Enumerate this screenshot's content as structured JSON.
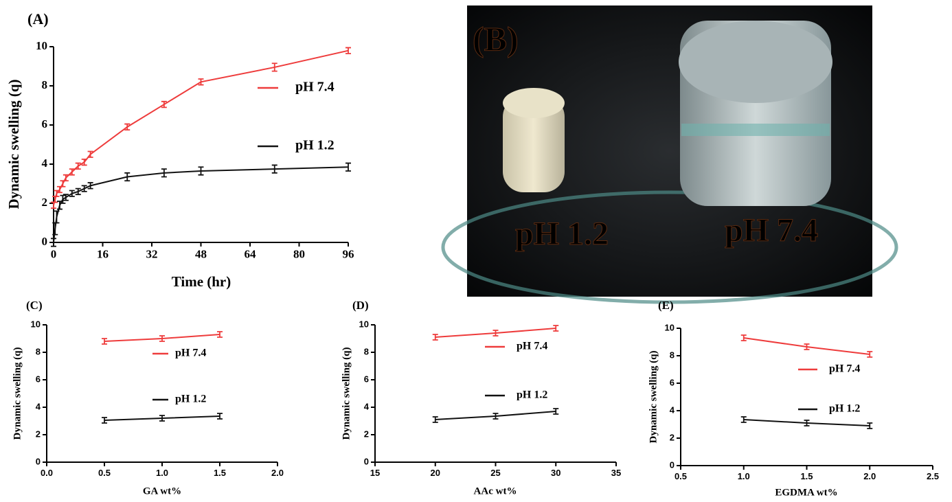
{
  "chart_data": [
    {
      "type": "line",
      "panel_label": "(A)",
      "x_label": "Time (hr)",
      "y_label": "Dynamic swelling (q)",
      "x": [
        0,
        0.5,
        1,
        2,
        3,
        4,
        6,
        8,
        10,
        12,
        24,
        36,
        48,
        72,
        96
      ],
      "series": [
        {
          "name": "pH 7.4",
          "color": "#ee3b3b",
          "values": [
            1.9,
            2.2,
            2.5,
            2.7,
            3.0,
            3.3,
            3.6,
            3.9,
            4.1,
            4.5,
            5.9,
            7.05,
            8.2,
            8.95,
            9.8
          ],
          "errors": [
            0.15,
            0.15,
            0.15,
            0.15,
            0.15,
            0.15,
            0.15,
            0.15,
            0.15,
            0.15,
            0.15,
            0.15,
            0.15,
            0.2,
            0.15
          ]
        },
        {
          "name": "pH 1.2",
          "color": "#111111",
          "values": [
            0,
            0.7,
            1.3,
            1.9,
            2.2,
            2.3,
            2.5,
            2.6,
            2.75,
            2.9,
            3.35,
            3.55,
            3.65,
            3.75,
            3.85
          ],
          "errors": [
            0.2,
            0.3,
            0.3,
            0.2,
            0.2,
            0.15,
            0.15,
            0.15,
            0.15,
            0.15,
            0.2,
            0.2,
            0.2,
            0.2,
            0.2
          ]
        }
      ],
      "xlim": [
        0,
        96
      ],
      "ylim": [
        0,
        10
      ],
      "xticks": [
        0,
        16,
        32,
        48,
        64,
        80,
        96
      ],
      "yticks": [
        0,
        2,
        4,
        6,
        8,
        10
      ]
    },
    {
      "type": "line",
      "panel_label": "(C)",
      "x_label": "GA wt%",
      "y_label": "Dynamic swelling (q)",
      "x": [
        0.5,
        1,
        1.5
      ],
      "series": [
        {
          "name": "pH 7.4",
          "color": "#ee3b3b",
          "values": [
            8.8,
            9.0,
            9.3
          ],
          "errors": [
            0.2,
            0.2,
            0.2
          ]
        },
        {
          "name": "pH 1.2",
          "color": "#111111",
          "values": [
            3.05,
            3.2,
            3.35
          ],
          "errors": [
            0.2,
            0.2,
            0.2
          ]
        }
      ],
      "xlim": [
        0,
        2
      ],
      "ylim": [
        0,
        10
      ],
      "xticks": [
        {
          "value": 0,
          "label": "0.0"
        },
        0.5,
        {
          "value": 1,
          "label": "1.0"
        },
        1.5,
        {
          "value": 2,
          "label": "2.0"
        }
      ],
      "yticks": [
        0,
        2,
        4,
        6,
        8,
        10
      ]
    },
    {
      "type": "line",
      "panel_label": "(D)",
      "x_label": "AAc wt%",
      "y_label": "Dynamic swelling (q)",
      "x": [
        20,
        25,
        30
      ],
      "series": [
        {
          "name": "pH 7.4",
          "color": "#ee3b3b",
          "values": [
            9.1,
            9.4,
            9.75
          ],
          "errors": [
            0.2,
            0.2,
            0.2
          ]
        },
        {
          "name": "pH 1.2",
          "color": "#111111",
          "values": [
            3.1,
            3.35,
            3.7
          ],
          "errors": [
            0.2,
            0.2,
            0.2
          ]
        }
      ],
      "xlim": [
        15,
        35
      ],
      "ylim": [
        0,
        10
      ],
      "xticks": [
        15,
        20,
        25,
        30,
        35
      ],
      "yticks": [
        0,
        2,
        4,
        6,
        8,
        10
      ]
    },
    {
      "type": "line",
      "panel_label": "(E)",
      "x_label": "EGDMA wt%",
      "y_label": "Dynamic swelling (q)",
      "x": [
        1,
        1.5,
        2
      ],
      "series": [
        {
          "name": "pH 7.4",
          "color": "#ee3b3b",
          "values": [
            9.3,
            8.65,
            8.1
          ],
          "errors": [
            0.2,
            0.2,
            0.2
          ]
        },
        {
          "name": "pH 1.2",
          "color": "#111111",
          "values": [
            3.35,
            3.1,
            2.9
          ],
          "errors": [
            0.2,
            0.2,
            0.2
          ]
        }
      ],
      "xlim": [
        0.5,
        2.5
      ],
      "ylim": [
        0,
        10
      ],
      "xticks": [
        0.5,
        {
          "value": 1,
          "label": "1.0"
        },
        1.5,
        {
          "value": 2,
          "label": "2.0"
        },
        2.5
      ],
      "yticks": [
        0,
        2,
        4,
        6,
        8,
        10
      ]
    }
  ],
  "photo": {
    "label": "(B)",
    "samples": [
      "pH 1.2",
      "pH 7.4"
    ]
  }
}
